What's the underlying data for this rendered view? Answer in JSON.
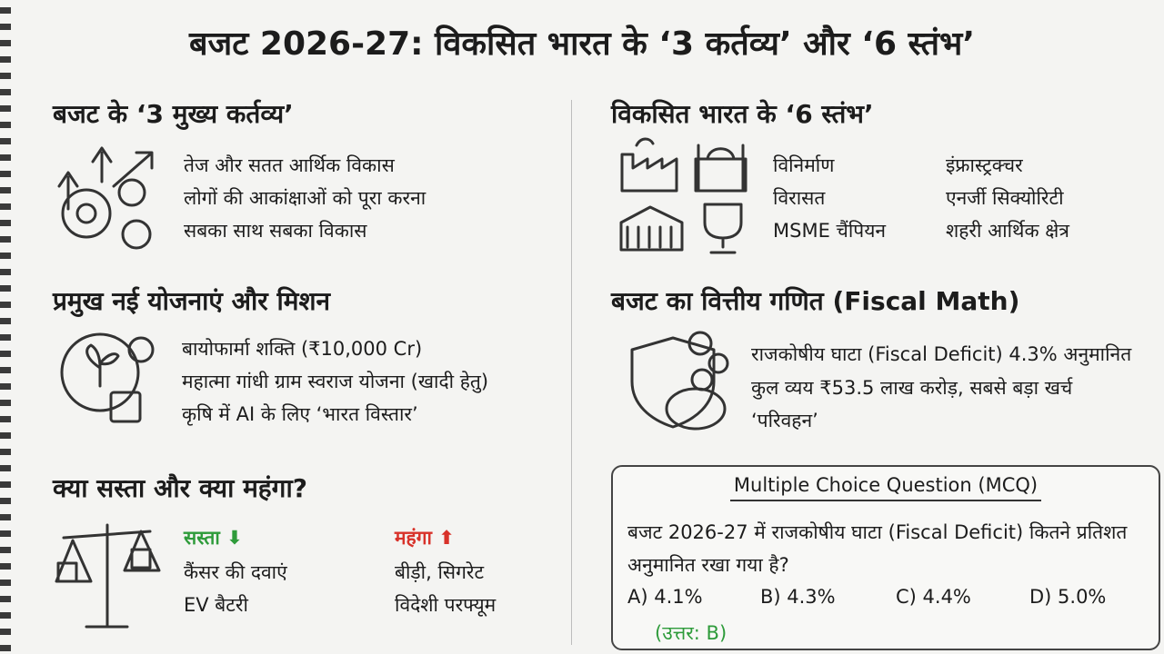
{
  "title": "बजट 2026-27: विकसित भारत के ‘3 कर्तव्य’ और ‘6 स्तंभ’",
  "duties": {
    "heading": "बजट के ‘3 मुख्य कर्तव्य’",
    "items": [
      "तेज और सतत आर्थिक विकास",
      "लोगों की आकांक्षाओं को पूरा करना",
      "सबका साथ सबका विकास"
    ]
  },
  "pillars": {
    "heading": "विकसित भारत के ‘6 स्तंभ’",
    "items": [
      "विनिर्माण",
      "इंफ्रास्ट्रक्चर",
      "विरासत",
      "एनर्जी सिक्योरिटी",
      "MSME चैंपियन",
      "शहरी आर्थिक क्षेत्र"
    ]
  },
  "schemes": {
    "heading": "प्रमुख नई योजनाएं और मिशन",
    "items": [
      "बायोफार्मा शक्ति (₹10,000 Cr)",
      "महात्मा गांधी ग्राम स्वराज योजना (खादी हेतु)",
      "कृषि में AI के लिए ‘भारत विस्तार’"
    ]
  },
  "fiscal": {
    "heading": "बजट का वित्तीय गणित (Fiscal Math)",
    "lines": [
      "राजकोषीय घाटा (Fiscal Deficit) 4.3% अनुमानित",
      "कुल व्यय ₹53.5 लाख करोड़, सबसे बड़ा खर्च",
      "‘परिवहन’"
    ]
  },
  "prices": {
    "heading": "क्या सस्ता और क्या महंगा?",
    "cheaper": {
      "label": "सस्ता",
      "items": [
        "कैंसर की दवाएं",
        "EV बैटरी"
      ]
    },
    "costlier": {
      "label": "महंगा",
      "items": [
        "बीड़ी, सिगरेट",
        "विदेशी परफ्यूम"
      ]
    }
  },
  "mcq": {
    "title": "Multiple Choice Question (MCQ)",
    "question": "बजट 2026-27 में राजकोषीय घाटा (Fiscal Deficit) कितने प्रतिशत अनुमानित रखा गया है?",
    "options": [
      "A) 4.1%",
      "B) 4.3%",
      "C) 4.4%",
      "D) 5.0%"
    ],
    "answer": "(उत्तर: B)"
  }
}
